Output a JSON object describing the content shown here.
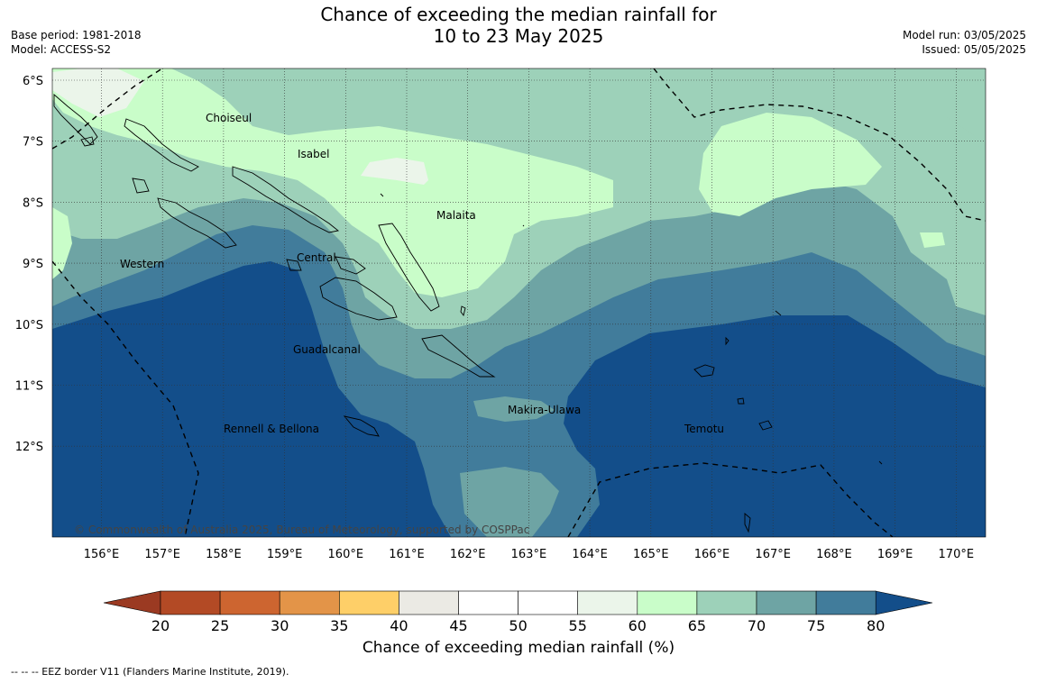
{
  "title": {
    "line1": "Chance of exceeding the median rainfall for",
    "line2": "10 to 23 May 2025"
  },
  "meta_left": {
    "base_period": "Base period: 1981-2018",
    "model": "Model: ACCESS-S2"
  },
  "meta_right": {
    "model_run": "Model run: 03/05/2025",
    "issued": "Issued: 05/05/2025"
  },
  "lat_labels": [
    "6°S",
    "7°S",
    "8°S",
    "9°S",
    "10°S",
    "11°S",
    "12°S"
  ],
  "lon_labels": [
    "156°E",
    "157°E",
    "158°E",
    "159°E",
    "160°E",
    "161°E",
    "162°E",
    "163°E",
    "164°E",
    "165°E",
    "166°E",
    "167°E",
    "168°E",
    "169°E",
    "170°E"
  ],
  "regions": [
    "Choiseul",
    "Isabel",
    "Malaita",
    "Western",
    "Central",
    "Guadalcanal",
    "Makira-Ulawa",
    "Rennell & Bellona",
    "Temotu"
  ],
  "copyright": "© Commonwealth of Australia 2025, Bureau of Meteorology, supported by COSPPac",
  "colorbar": {
    "ticks": [
      "20",
      "25",
      "30",
      "35",
      "40",
      "45",
      "50",
      "55",
      "60",
      "65",
      "70",
      "75",
      "80"
    ],
    "colors": [
      "#b34a25",
      "#cd6530",
      "#e39448",
      "#fecf68",
      "#ebeae4",
      "#ffffff",
      "#ffffff",
      "#ebf5ea",
      "#c9fdc9",
      "#9dd1b9",
      "#6ea4a4",
      "#417c9b"
    ],
    "under_color": "#9b3a22",
    "over_color": "#134e8a",
    "label": "Chance of exceeding median rainfall (%)"
  },
  "palette": {
    "c55_60": "#ebf5ea",
    "c60_65": "#c9fdc9",
    "c65_70": "#9dd1b9",
    "c70_75": "#6ea4a4",
    "c75_80": "#417c9b",
    "c80": "#134e8a"
  },
  "footnote": "--  --  -- EEZ border V11 (Flanders Marine Institute, 2019)."
}
